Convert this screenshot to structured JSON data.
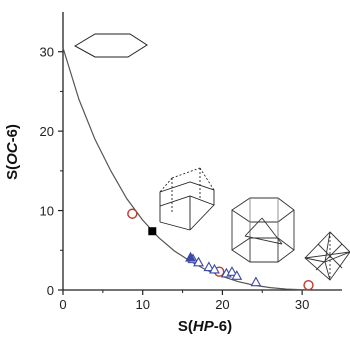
{
  "chart_data": {
    "type": "scatter",
    "xlabel_parts": [
      "S(",
      "HP",
      "-6)"
    ],
    "ylabel_parts": [
      "S(",
      "OC",
      "-6)"
    ],
    "xlim": [
      0,
      35
    ],
    "ylim": [
      0,
      35
    ],
    "x_ticks": [
      0,
      10,
      20,
      30
    ],
    "y_ticks": [
      0,
      10,
      20,
      30
    ],
    "grid": false,
    "legend": "none",
    "path_curve": [
      {
        "x": 0.0,
        "y": 30.5
      },
      {
        "x": 2.0,
        "y": 24.0
      },
      {
        "x": 4.0,
        "y": 19.0
      },
      {
        "x": 6.0,
        "y": 15.0
      },
      {
        "x": 8.0,
        "y": 11.5
      },
      {
        "x": 10.0,
        "y": 8.8
      },
      {
        "x": 12.0,
        "y": 6.6
      },
      {
        "x": 14.0,
        "y": 4.9
      },
      {
        "x": 16.0,
        "y": 3.6
      },
      {
        "x": 18.0,
        "y": 2.5
      },
      {
        "x": 20.0,
        "y": 1.7
      },
      {
        "x": 22.0,
        "y": 1.05
      },
      {
        "x": 24.0,
        "y": 0.6
      },
      {
        "x": 26.0,
        "y": 0.3
      },
      {
        "x": 28.0,
        "y": 0.12
      },
      {
        "x": 30.0,
        "y": 0.03
      },
      {
        "x": 31.0,
        "y": 0.0
      }
    ],
    "series": [
      {
        "marker": "circle-open",
        "color": "#c0392b",
        "points": [
          {
            "x": 8.7,
            "y": 9.6
          },
          {
            "x": 19.6,
            "y": 2.3
          },
          {
            "x": 30.8,
            "y": 0.6
          }
        ]
      },
      {
        "marker": "square-filled",
        "color": "#000000",
        "points": [
          {
            "x": 11.2,
            "y": 7.4
          }
        ]
      },
      {
        "marker": "triangle-open",
        "color": "#3b49a8",
        "points": [
          {
            "x": 16.3,
            "y": 3.9
          },
          {
            "x": 17.0,
            "y": 3.5
          },
          {
            "x": 18.3,
            "y": 2.9
          },
          {
            "x": 19.0,
            "y": 2.6
          },
          {
            "x": 20.5,
            "y": 2.1
          },
          {
            "x": 21.2,
            "y": 2.3
          },
          {
            "x": 21.8,
            "y": 1.8
          },
          {
            "x": 24.2,
            "y": 1.0
          }
        ]
      },
      {
        "marker": "triangle-filled",
        "color": "#3b49a8",
        "points": [
          {
            "x": 16.0,
            "y": 4.1
          }
        ]
      }
    ],
    "polyhedra_icons": [
      "hexagon-icon",
      "trigonal-prism-icon",
      "hexagonal-prism-icon",
      "octahedron-icon"
    ]
  }
}
